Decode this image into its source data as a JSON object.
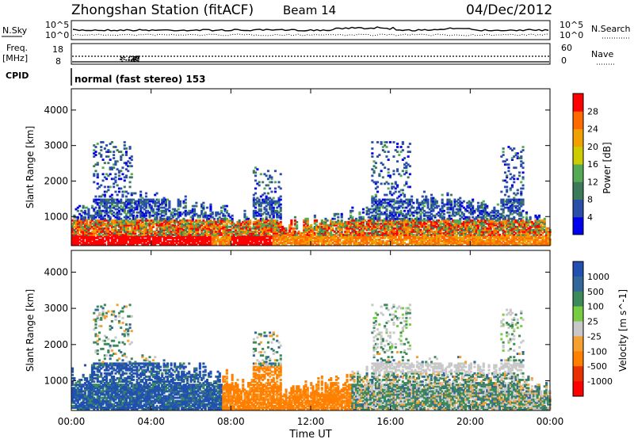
{
  "header": {
    "station": "Zhongshan Station (fitACF)",
    "beam": "Beam 14",
    "date": "04/Dec/2012"
  },
  "top_panels": {
    "nsky_label": "N.Sky",
    "nsky_ticks": [
      "10^5",
      "10^0"
    ],
    "nsearch_label": "N.Search",
    "nsearch_ticks": [
      "10^5",
      "10^0"
    ],
    "freq_label_1": "Freq.",
    "freq_label_2": "[MHz]",
    "freq_ticks": [
      "18",
      "8"
    ],
    "nave_label": "Nave",
    "nave_ticks": [
      "60",
      "0"
    ],
    "cpid_label": "CPID",
    "cpid_value": "normal (fast stereo) 153"
  },
  "colors": {
    "power_scale": [
      "#0000ee",
      "#2a4fa8",
      "#3c7a5a",
      "#55aa55",
      "#cccc00",
      "#f0a000",
      "#ff6a00",
      "#ff0000"
    ],
    "velocity_scale": [
      "#2050b0",
      "#336699",
      "#3c8a5a",
      "#77cc44",
      "#c8c8c8",
      "#f5a030",
      "#ff7f00",
      "#e83000",
      "#ff0000"
    ]
  },
  "chart_data": [
    {
      "type": "heatmap",
      "title": "Power",
      "xlabel": "Time UT",
      "ylabel": "Slant Range [km]",
      "x_ticks": [
        "00:00",
        "04:00",
        "08:00",
        "12:00",
        "16:00",
        "20:00",
        "00:00"
      ],
      "x_range_hours": [
        0,
        24
      ],
      "y_ticks": [
        1000,
        2000,
        3000,
        4000
      ],
      "ylim": [
        180,
        4600
      ],
      "colorbar_label": "Power [dB]",
      "colorbar_ticks": [
        4,
        8,
        12,
        16,
        20,
        24,
        28
      ],
      "colorbar_range": [
        0,
        32
      ]
    },
    {
      "type": "heatmap",
      "title": "Velocity",
      "xlabel": "Time UT",
      "ylabel": "Slant Range [km]",
      "x_ticks": [
        "00:00",
        "04:00",
        "08:00",
        "12:00",
        "16:00",
        "20:00",
        "00:00"
      ],
      "x_range_hours": [
        0,
        24
      ],
      "y_ticks": [
        1000,
        2000,
        3000,
        4000
      ],
      "ylim": [
        180,
        4600
      ],
      "colorbar_label": "Velocity [m s^-1]",
      "colorbar_ticks": [
        "1000",
        "500",
        "100",
        "25",
        "-25",
        "-100",
        "-500",
        "-1000"
      ]
    }
  ]
}
